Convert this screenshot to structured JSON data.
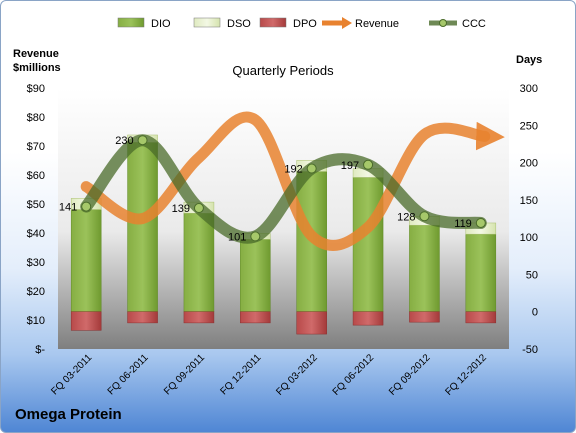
{
  "company": "Omega Protein",
  "chart_data": {
    "type": "bar",
    "title": "Quarterly Periods",
    "ylabel_left": "Revenue\n$millions",
    "ylabel_right": "Days",
    "categories": [
      "FQ 03-2011",
      "FQ 06-2011",
      "FQ 09-2011",
      "FQ 12-2011",
      "FQ 03-2012",
      "FQ 06-2012",
      "FQ 09-2012",
      "FQ 12-2012"
    ],
    "y_left": {
      "min": 0,
      "max": 90,
      "step": 10,
      "tick_labels": [
        "$-",
        "$10",
        "$20",
        "$30",
        "$40",
        "$50",
        "$60",
        "$70",
        "$80",
        "$90"
      ]
    },
    "y_right": {
      "min": -50,
      "max": 300,
      "step": 50,
      "tick_labels": [
        "-50",
        "0",
        "50",
        "100",
        "150",
        "200",
        "250",
        "300"
      ]
    },
    "legend": {
      "placement": "top",
      "entries": [
        "DIO",
        "DSO",
        "DPO",
        "Revenue",
        "CCC"
      ]
    },
    "series": [
      {
        "name": "DIO",
        "axis": "right",
        "kind": "stacked-bar",
        "color": "#6f9a2f",
        "values": [
          137,
          227,
          132,
          97,
          188,
          180,
          116,
          104
        ]
      },
      {
        "name": "DSO",
        "axis": "right",
        "kind": "stacked-bar",
        "color": "#e6f0c8",
        "values": [
          15,
          10,
          15,
          8,
          15,
          12,
          12,
          15
        ]
      },
      {
        "name": "DPO",
        "axis": "right",
        "kind": "negative-bar",
        "color": "#b84a4a",
        "values": [
          -25,
          -15,
          -15,
          -15,
          -30,
          -18,
          -14,
          -15
        ]
      },
      {
        "name": "Revenue",
        "axis": "left",
        "kind": "line-arrow",
        "color": "#e8822f",
        "values": [
          56,
          45,
          66,
          79,
          39,
          42,
          74,
          74
        ]
      },
      {
        "name": "CCC",
        "axis": "right",
        "kind": "line",
        "color": "#4a6b2a",
        "values": [
          141,
          230,
          139,
          101,
          192,
          197,
          128,
          119
        ]
      }
    ],
    "data_labels": [
      "141",
      "230",
      "139",
      "101",
      "192",
      "197",
      "128",
      "119"
    ],
    "grid": false
  }
}
